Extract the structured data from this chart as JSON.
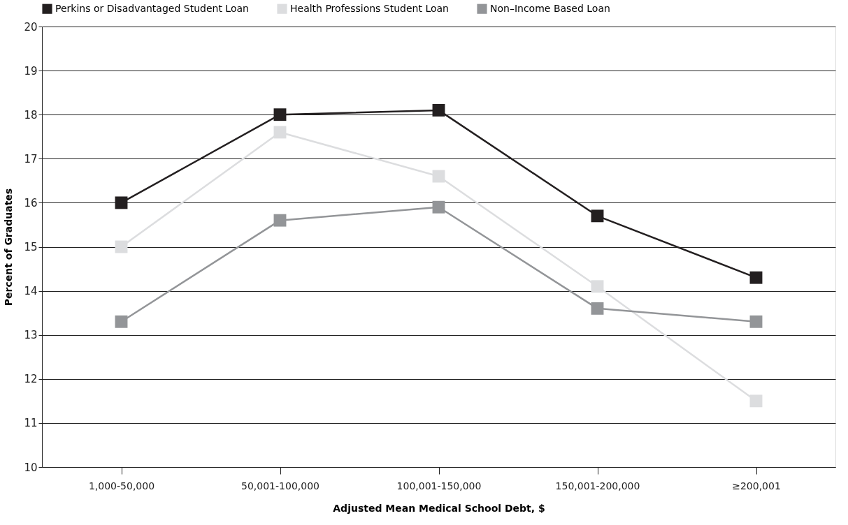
{
  "chart_data": {
    "type": "line",
    "xlabel": "Adjusted Mean Medical School Debt, $",
    "ylabel": "Percent of Graduates",
    "categories": [
      "1,000-50,000",
      "50,001-100,000",
      "100,001-150,000",
      "150,001-200,000",
      "≥200,001"
    ],
    "series": [
      {
        "name": "Perkins or Disadvantaged Student Loan",
        "color": "#231f20",
        "values": [
          16.0,
          18.0,
          18.1,
          15.7,
          14.3
        ]
      },
      {
        "name": "Health Professions Student Loan",
        "color": "#dcdddf",
        "values": [
          15.0,
          17.6,
          16.6,
          14.1,
          11.5
        ]
      },
      {
        "name": "Non–Income Based Loan",
        "color": "#939598",
        "values": [
          13.3,
          15.6,
          15.9,
          13.6,
          13.3
        ]
      }
    ],
    "ylim": [
      10,
      20
    ],
    "yticks": [
      10,
      11,
      12,
      13,
      14,
      15,
      16,
      17,
      18,
      19,
      20
    ],
    "grid": "y",
    "legend": "top",
    "marker": "square",
    "line_style": "solid"
  }
}
